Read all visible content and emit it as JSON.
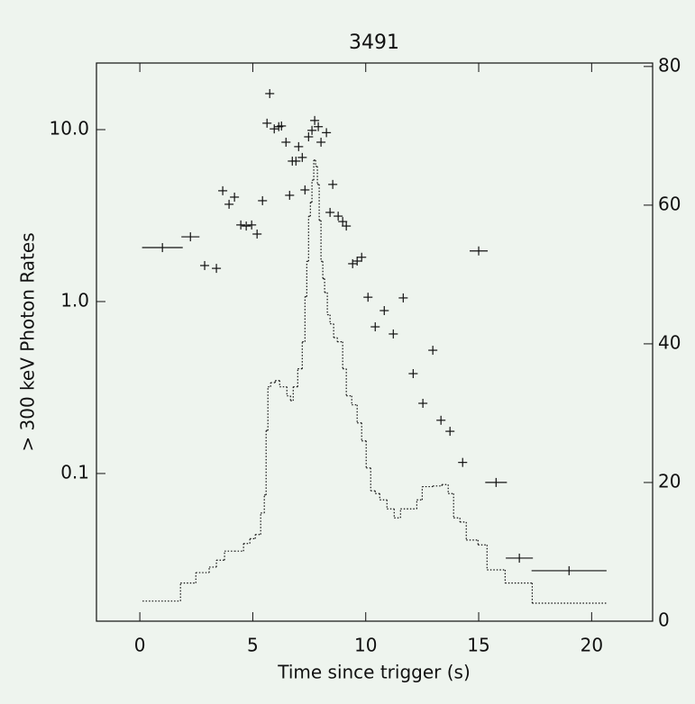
{
  "chart_data": {
    "type": "scatter",
    "title": "3491",
    "xlabel": "Time since trigger (s)",
    "ylabel": "> 300 keV Photon Rates",
    "xlim": [
      -1.92,
      22.7
    ],
    "xticks": [
      0,
      5,
      10,
      15,
      20
    ],
    "ylim": [
      0.01384,
      24.4
    ],
    "ylog": true,
    "yticks": [
      {
        "value": 10,
        "label": "10.0"
      },
      {
        "value": 1,
        "label": "1.0"
      },
      0.1
    ],
    "y2lim": [
      0,
      80.5
    ],
    "y2ticks": [
      0,
      20,
      40,
      60,
      80
    ],
    "series": [
      {
        "type": "scatter",
        "color": "#111111",
        "x": [
          1.0,
          2.24,
          2.87,
          3.39,
          3.67,
          3.95,
          4.19,
          4.47,
          4.71,
          4.95,
          5.19,
          5.43,
          5.63,
          5.75,
          5.95,
          6.15,
          6.27,
          6.47,
          6.63,
          6.75,
          6.91,
          7.03,
          7.19,
          7.31,
          7.47,
          7.62,
          7.74,
          7.9,
          8.02,
          8.26,
          8.42,
          8.54,
          8.78,
          8.98,
          9.14,
          9.42,
          9.62,
          9.82,
          10.1,
          10.42,
          10.82,
          11.22,
          11.66,
          12.1,
          12.53,
          12.97,
          13.33,
          13.73,
          14.29,
          15.0,
          15.77,
          16.8,
          19.0
        ],
        "xerr": [
          0.9,
          0.4,
          0.2,
          0.2,
          0.2,
          0.2,
          0.2,
          0.2,
          0.2,
          0.2,
          0.2,
          0.2,
          0.2,
          0.2,
          0.2,
          0.2,
          0.2,
          0.2,
          0.2,
          0.2,
          0.2,
          0.2,
          0.2,
          0.2,
          0.2,
          0.2,
          0.2,
          0.2,
          0.2,
          0.2,
          0.2,
          0.2,
          0.2,
          0.2,
          0.2,
          0.2,
          0.2,
          0.2,
          0.2,
          0.2,
          0.2,
          0.2,
          0.2,
          0.2,
          0.2,
          0.2,
          0.2,
          0.2,
          0.2,
          0.4,
          0.48,
          0.6,
          1.66
        ],
        "y": [
          2.06,
          2.38,
          1.62,
          1.56,
          4.41,
          3.68,
          4.05,
          2.79,
          2.75,
          2.79,
          2.47,
          3.86,
          10.9,
          16.2,
          10.1,
          10.4,
          10.5,
          8.45,
          4.15,
          6.56,
          6.56,
          7.96,
          6.89,
          4.46,
          9.08,
          9.9,
          11.3,
          10.4,
          8.45,
          9.6,
          3.3,
          4.8,
          3.14,
          2.92,
          2.75,
          1.66,
          1.72,
          1.81,
          1.06,
          0.713,
          0.886,
          0.648,
          1.05,
          0.381,
          0.256,
          0.521,
          0.204,
          0.176,
          0.116,
          1.97,
          0.0887,
          0.0322,
          0.0272
        ]
      },
      {
        "type": "step",
        "axis": "y2",
        "color": "#111111",
        "bins": [
          0.12,
          1.8,
          2.48,
          3.07,
          3.39,
          3.75,
          4.19,
          4.59,
          4.87,
          5.11,
          5.35,
          5.51,
          5.59,
          5.67,
          5.79,
          5.99,
          6.19,
          6.51,
          6.67,
          6.79,
          6.99,
          7.19,
          7.31,
          7.39,
          7.47,
          7.55,
          7.62,
          7.7,
          7.78,
          7.86,
          7.94,
          8.02,
          8.1,
          8.18,
          8.3,
          8.42,
          8.58,
          8.74,
          8.98,
          9.14,
          9.38,
          9.62,
          9.82,
          10.02,
          10.22,
          10.42,
          10.62,
          10.94,
          11.26,
          11.54,
          11.82,
          12.26,
          12.5,
          12.97,
          13.37,
          13.65,
          13.89,
          14.17,
          14.45,
          14.97,
          15.37,
          16.17,
          17.37,
          20.68
        ],
        "values": [
          2.9,
          5.5,
          7.0,
          7.8,
          8.8,
          10.1,
          10.1,
          11.2,
          11.9,
          12.5,
          15.6,
          18.2,
          27.5,
          33.8,
          34.4,
          34.7,
          33.8,
          32.5,
          31.8,
          33.8,
          36.4,
          40.3,
          46.8,
          51.9,
          58.4,
          60.4,
          63.6,
          66.5,
          65.6,
          63.0,
          57.8,
          51.9,
          49.4,
          47.4,
          44.2,
          42.9,
          40.9,
          40.3,
          36.4,
          32.5,
          31.2,
          28.6,
          26.0,
          22.1,
          18.8,
          18.4,
          17.5,
          16.2,
          14.9,
          16.2,
          16.2,
          17.5,
          19.4,
          19.5,
          19.7,
          18.4,
          14.9,
          14.3,
          11.7,
          11.0,
          7.4,
          5.5,
          2.6
        ]
      }
    ]
  }
}
